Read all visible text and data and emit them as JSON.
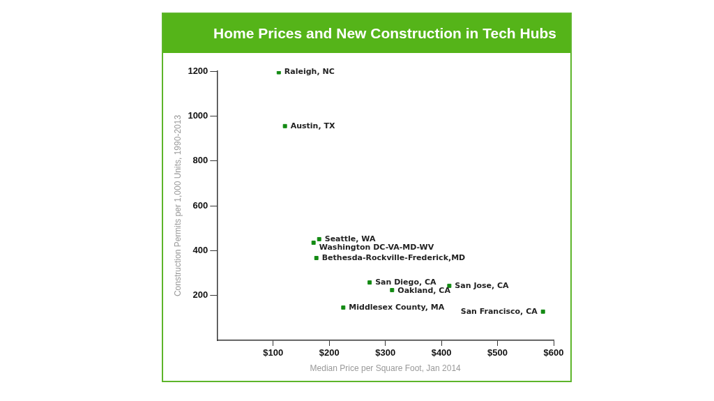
{
  "chart_data": {
    "type": "scatter",
    "title": "Home Prices and New Construction in Tech Hubs",
    "xlabel": "Median Price per Square Foot, Jan 2014",
    "ylabel": "Construction Permits per 1,000 Units, 1990-2013",
    "series": [
      {
        "color": "#138a13",
        "x": [
          110,
          121,
          182,
          172,
          177,
          272,
          312,
          414,
          225,
          581
        ],
        "values": [
          1195,
          955,
          451,
          435,
          367,
          258,
          224,
          243,
          146,
          128
        ]
      }
    ],
    "annotations": [
      {
        "text": "Raleigh, NC",
        "x": 110,
        "y": 1195
      },
      {
        "text": "Austin, TX",
        "x": 121,
        "y": 955
      },
      {
        "text": "Seattle, WA",
        "x": 182,
        "y": 451
      },
      {
        "text": "Washington DC-VA-MD-WV",
        "x": 172,
        "y": 435
      },
      {
        "text": "Bethesda-Rockville-Frederick,MD",
        "x": 177,
        "y": 367
      },
      {
        "text": "San Diego, CA",
        "x": 272,
        "y": 258
      },
      {
        "text": "Oakland, CA",
        "x": 312,
        "y": 224
      },
      {
        "text": "San Jose, CA",
        "x": 414,
        "y": 243
      },
      {
        "text": "Middlesex County, MA",
        "x": 225,
        "y": 146
      },
      {
        "text": "San Francisco, CA",
        "x": 581,
        "y": 128
      }
    ],
    "xlim": [
      0,
      600
    ],
    "xticks": [
      {
        "value": 100,
        "label": "$100"
      },
      {
        "value": 200,
        "label": "$200"
      },
      {
        "value": 300,
        "label": "$300"
      },
      {
        "value": 400,
        "label": "$400"
      },
      {
        "value": 500,
        "label": "$500"
      },
      {
        "value": 600,
        "label": "$600"
      }
    ],
    "ylim": [
      0,
      1200
    ],
    "yticks": [
      200,
      400,
      600,
      800,
      1000,
      1200
    ],
    "grid": false,
    "legend": false,
    "marker": "square"
  }
}
